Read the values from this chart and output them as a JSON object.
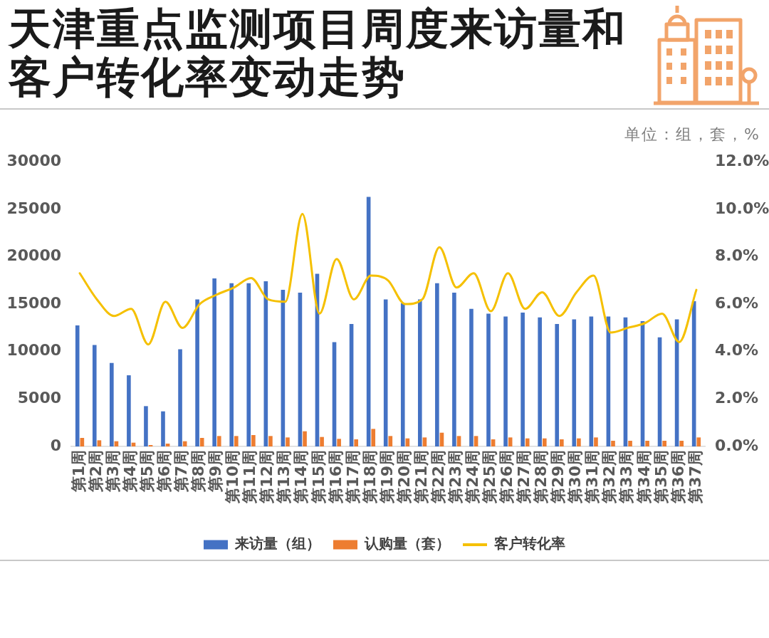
{
  "chart_data": {
    "type": "bar",
    "title": "天津重点监测项目周度来访量和客户转化率变动走势",
    "annotations": [
      "单位：组，套，%"
    ],
    "categories": [
      "第1周",
      "第2周",
      "第3周",
      "第4周",
      "第5周",
      "第6周",
      "第7周",
      "第8周",
      "第9周",
      "第10周",
      "第11周",
      "第12周",
      "第13周",
      "第14周",
      "第15周",
      "第16周",
      "第17周",
      "第18周",
      "第19周",
      "第20周",
      "第21周",
      "第22周",
      "第23周",
      "第24周",
      "第25周",
      "第26周",
      "第27周",
      "第28周",
      "第29周",
      "第30周",
      "第31周",
      "第32周",
      "第33周",
      "第34周",
      "第35周",
      "第36周",
      "第37周"
    ],
    "series": [
      {
        "name": "来访量（组）",
        "color": "#4472c4",
        "values": [
          12750,
          10700,
          8800,
          7500,
          4250,
          3700,
          10250,
          15500,
          17700,
          17200,
          17200,
          17400,
          16500,
          16200,
          18200,
          11000,
          12900,
          26300,
          15500,
          15100,
          15500,
          17200,
          16200,
          14500,
          14000,
          13700,
          14100,
          13600,
          12900,
          13400,
          13700,
          13700,
          13600,
          13200,
          11500,
          13400,
          15300
        ]
      },
      {
        "name": "认购量（套）",
        "color": "#ed7d31",
        "values": [
          900,
          650,
          550,
          400,
          150,
          300,
          550,
          900,
          1100,
          1100,
          1200,
          1100,
          950,
          1600,
          1000,
          800,
          750,
          1850,
          1100,
          850,
          950,
          1450,
          1100,
          1100,
          750,
          950,
          850,
          850,
          750,
          850,
          950,
          600,
          600,
          600,
          600,
          600,
          950
        ]
      },
      {
        "name": "客户转化率",
        "type": "line",
        "axis": "y2",
        "color": "#f5c000",
        "values": [
          7.3,
          6.2,
          5.5,
          5.8,
          4.3,
          6.1,
          5.0,
          6.0,
          6.4,
          6.7,
          7.1,
          6.2,
          6.1,
          9.8,
          5.6,
          7.9,
          6.2,
          7.2,
          7.0,
          6.0,
          6.2,
          8.4,
          6.7,
          7.3,
          5.7,
          7.3,
          5.8,
          6.5,
          5.5,
          6.5,
          7.2,
          4.8,
          5.0,
          5.2,
          5.6,
          4.4,
          6.6
        ]
      }
    ],
    "ylim": [
      0,
      30000
    ],
    "yticks": [
      0,
      5000,
      10000,
      15000,
      20000,
      25000,
      30000
    ],
    "y2lim": [
      0,
      12
    ],
    "y2ticks": [
      {
        "value": 0,
        "label": "0.0%"
      },
      {
        "value": 2,
        "label": "2.0%"
      },
      {
        "value": 4,
        "label": "4.0%"
      },
      {
        "value": 6,
        "label": "6.0%"
      },
      {
        "value": 8,
        "label": "8.0%"
      },
      {
        "value": 10,
        "label": "10.0%"
      },
      {
        "value": 12,
        "label": "12.0%"
      }
    ],
    "grid": false,
    "legend": "bottom",
    "marker": "none"
  }
}
